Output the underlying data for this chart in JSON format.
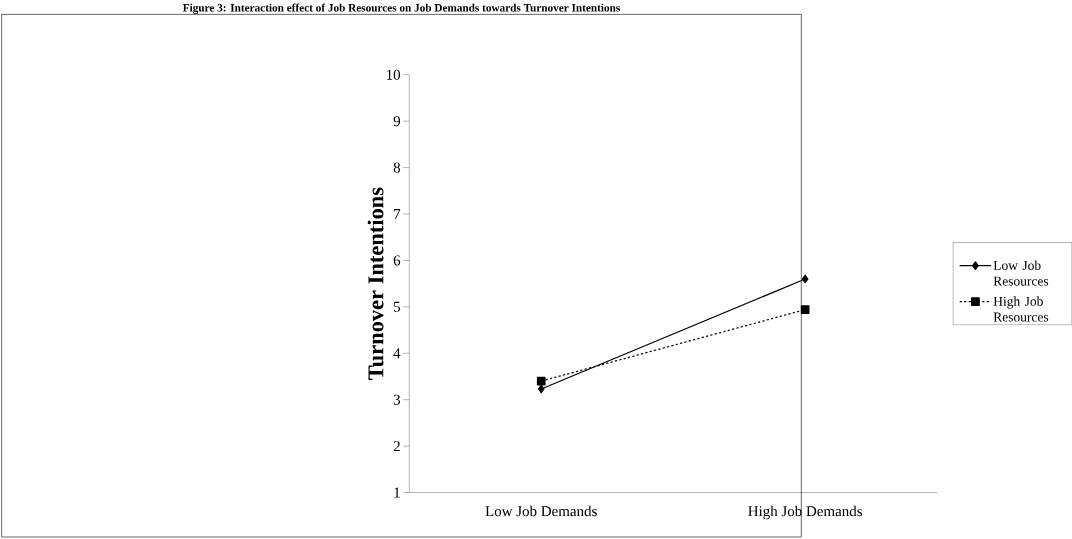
{
  "chart_data": {
    "type": "line",
    "title": "Figure 3: Interaction effect of Job Resources on Job Demands towards Turnover Intentions",
    "ylabel": "Turnover Intentions",
    "categories": [
      "Low Job Demands",
      "High Job Demands"
    ],
    "series": [
      {
        "name": "Low Job Resources",
        "color": "#000000",
        "values": [
          3.23,
          5.6
        ],
        "marker": "diamond",
        "line_style": "solid"
      },
      {
        "name": "High Job Resources",
        "color": "#000000",
        "values": [
          3.4,
          4.94
        ],
        "marker": "square",
        "line_style": "dashed"
      }
    ],
    "ylim": [
      1,
      10
    ],
    "yticks": [
      1,
      2,
      3,
      4,
      5,
      6,
      7,
      8,
      9,
      10
    ],
    "grid": false,
    "legend": "right"
  }
}
